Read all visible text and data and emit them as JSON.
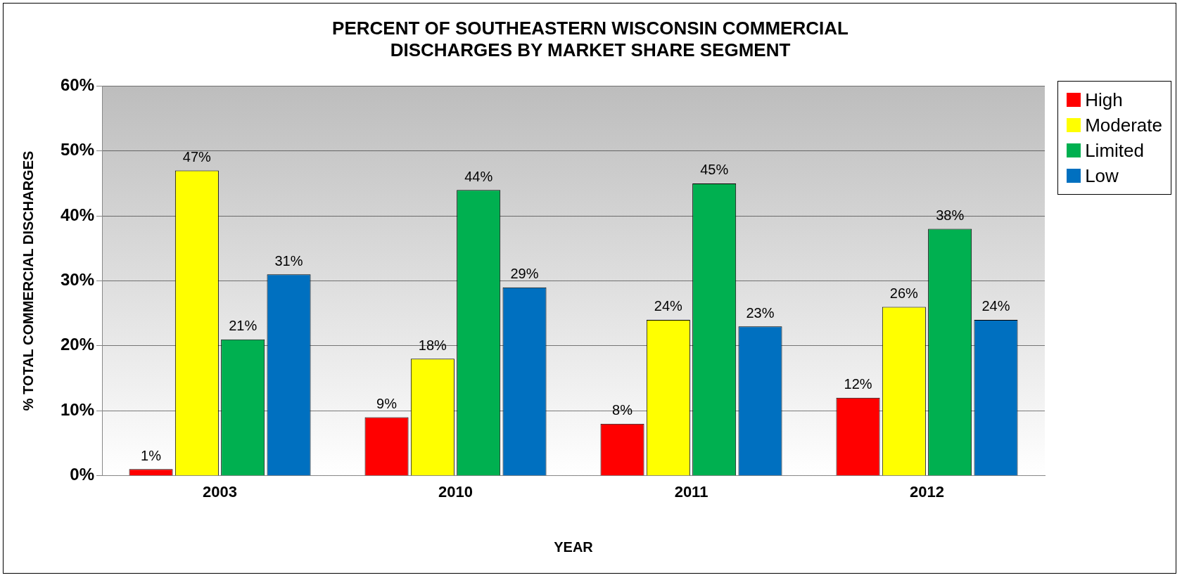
{
  "chart_data": {
    "type": "bar",
    "title": "PERCENT OF SOUTHEASTERN WISCONSIN COMMERCIAL DISCHARGES BY MARKET SHARE SEGMENT",
    "xlabel": "YEAR",
    "ylabel": "% TOTAL COMMERCIAL DISCHARGES",
    "categories": [
      "2003",
      "2010",
      "2011",
      "2012"
    ],
    "series": [
      {
        "name": "High",
        "color": "#ff0000",
        "values": [
          1,
          9,
          8,
          12
        ],
        "value_labels": [
          "1%",
          "9%",
          "8%",
          "12%"
        ]
      },
      {
        "name": "Moderate",
        "color": "#ffff00",
        "values": [
          47,
          18,
          24,
          26
        ],
        "value_labels": [
          "47%",
          "18%",
          "24%",
          "26%"
        ]
      },
      {
        "name": "Limited",
        "color": "#00b050",
        "values": [
          21,
          44,
          45,
          38
        ],
        "value_labels": [
          "21%",
          "44%",
          "45%",
          "38%"
        ]
      },
      {
        "name": "Low",
        "color": "#0070c0",
        "values": [
          31,
          29,
          23,
          24
        ],
        "value_labels": [
          "31%",
          "29%",
          "23%",
          "24%"
        ]
      }
    ],
    "ylim": [
      0,
      60
    ],
    "yticks": [
      {
        "value": 0,
        "label": "0%"
      },
      {
        "value": 10,
        "label": "10%"
      },
      {
        "value": 20,
        "label": "20%"
      },
      {
        "value": 30,
        "label": "30%"
      },
      {
        "value": 40,
        "label": "40%"
      },
      {
        "value": 50,
        "label": "50%"
      },
      {
        "value": 60,
        "label": "60%"
      }
    ],
    "grid": "y",
    "legend": "top right"
  }
}
